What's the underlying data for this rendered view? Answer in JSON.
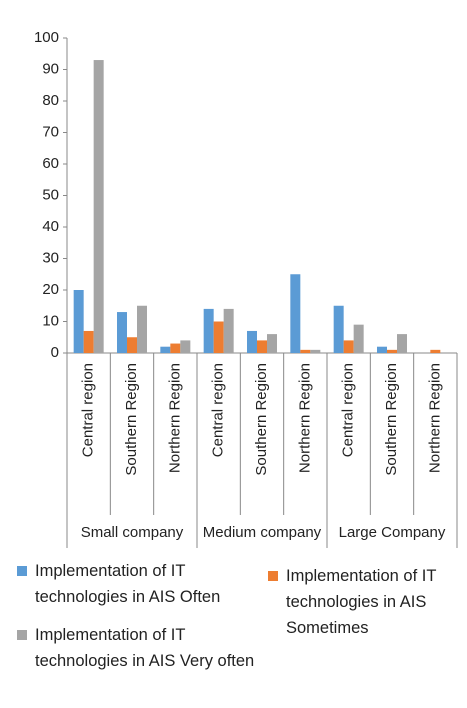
{
  "chart_data": {
    "type": "bar",
    "categories": [
      "Central region",
      "Southern Region",
      "Northern Region",
      "Central region",
      "Southern Region",
      "Northern Region",
      "Central region",
      "Southern Region",
      "Northern Region"
    ],
    "groups": [
      "Small company",
      "Medium company",
      "Large Company"
    ],
    "series": [
      {
        "name": "Implementation of IT technologies in AIS Often",
        "color": "#5b9bd5",
        "values": [
          20,
          13,
          2,
          14,
          7,
          25,
          15,
          2,
          0
        ]
      },
      {
        "name": "Implementation of IT technologies in AIS Sometimes",
        "color": "#ed7d31",
        "values": [
          7,
          5,
          3,
          10,
          4,
          1,
          4,
          1,
          1
        ]
      },
      {
        "name": "Implementation of IT technologies in AIS Very often",
        "color": "#a5a5a5",
        "values": [
          93,
          15,
          4,
          14,
          6,
          1,
          9,
          6,
          0
        ]
      }
    ],
    "ylim": [
      0,
      100
    ],
    "yticks": [
      0,
      10,
      20,
      30,
      40,
      50,
      60,
      70,
      80,
      90,
      100
    ],
    "grid": false
  }
}
